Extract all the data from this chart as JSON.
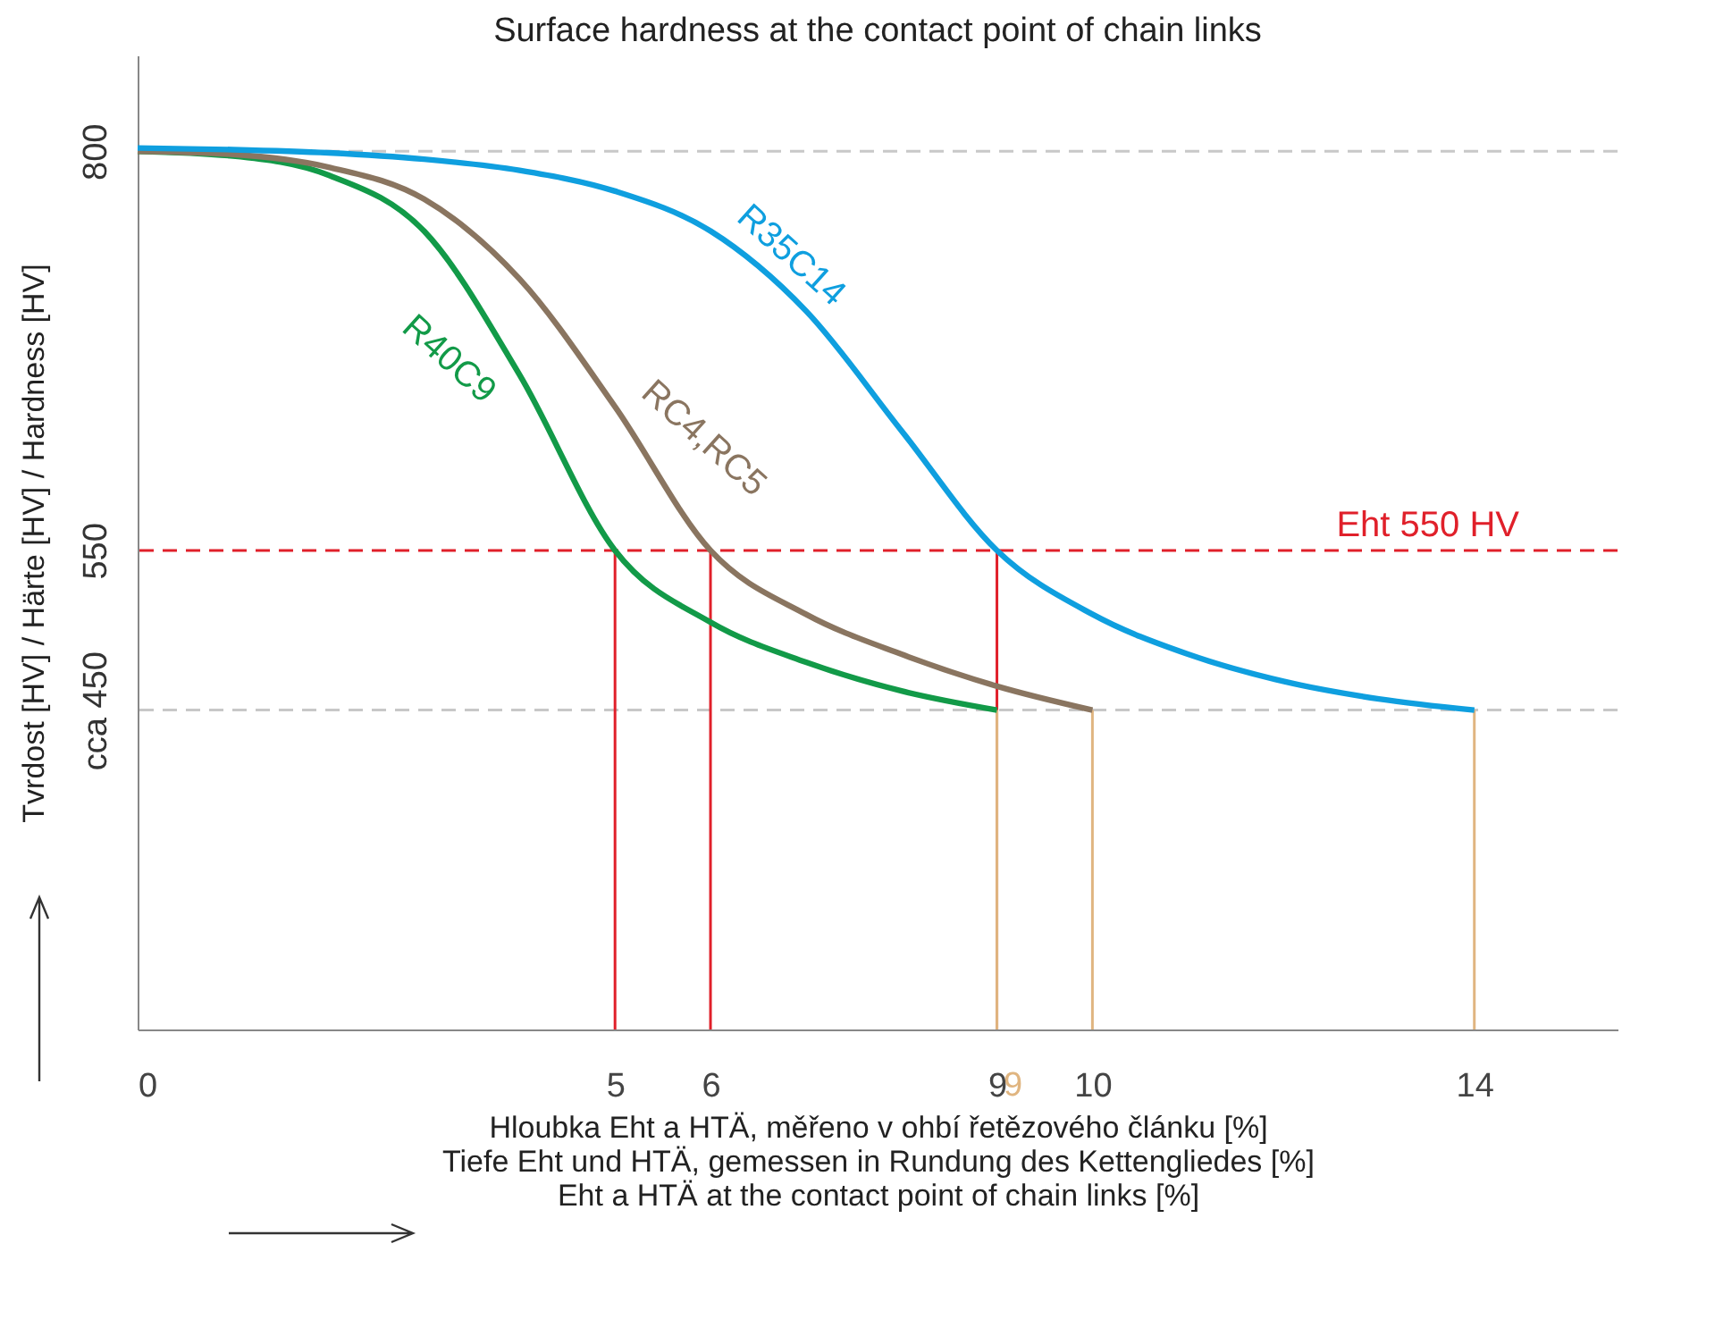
{
  "chart_data": {
    "type": "line",
    "title": "Surface hardness at the contact point of chain links",
    "xlabel": "Hloubka Eht a HTÄ, měřeno v ohbí řetězového článku [%]\nTiefe Eht und HTÄ, gemessen in Rundung des Kettengliedes [%]\nEht a HTÄ at the contact point of chain links [%]",
    "ylabel": "Tvrdost [HV] / Härte [HV] / Hardness [HV]",
    "xlim": [
      0,
      15.5
    ],
    "xticks": [
      0,
      5,
      6,
      9,
      10,
      14
    ],
    "ylim": [
      250,
      860
    ],
    "yticks": [
      {
        "value": 450,
        "label": "cca 450"
      },
      550,
      800
    ],
    "legend": false,
    "grid": false,
    "marker": "none",
    "line_style": "solid",
    "series": [
      {
        "name": "R40C9",
        "color": "#129a48",
        "x": [
          0,
          1,
          2,
          3,
          4,
          5,
          6,
          7,
          8,
          9
        ],
        "values": [
          800,
          797,
          785,
          750,
          660,
          550,
          505,
          480,
          462,
          450
        ]
      },
      {
        "name": "RC4,RC5",
        "color": "#8a7560",
        "x": [
          0,
          1,
          2,
          3,
          4,
          5,
          6,
          7,
          8,
          9,
          10
        ],
        "values": [
          800,
          798,
          790,
          770,
          720,
          640,
          550,
          510,
          485,
          465,
          450
        ]
      },
      {
        "name": "R35C14",
        "color": "#0f9fdf",
        "x": [
          0,
          1,
          2,
          3,
          4,
          5,
          6,
          7,
          8,
          9,
          10,
          11,
          12,
          13,
          14
        ],
        "values": [
          802,
          801,
          799,
          795,
          788,
          775,
          750,
          700,
          625,
          550,
          510,
          485,
          468,
          457,
          450
        ]
      }
    ],
    "ref_lines": [
      {
        "axis": "y",
        "value": 800,
        "color": "#c8c8c8",
        "line_style": "dashed"
      },
      {
        "axis": "y",
        "value": 550,
        "label": "Eht 550 HV",
        "color": "#e0202a",
        "line_style": "dashed"
      },
      {
        "axis": "y",
        "value": 450,
        "color": "#c8c8c8",
        "line_style": "dashed"
      },
      {
        "axis": "x",
        "value": 5,
        "color": "#e0202a"
      },
      {
        "axis": "x",
        "value": 6,
        "color": "#e0202a"
      },
      {
        "axis": "x",
        "value": 9,
        "color": "#e0202a"
      },
      {
        "axis": "x",
        "value": 9,
        "label": "9",
        "color": "#e0b580"
      },
      {
        "axis": "x",
        "value": 10,
        "color": "#e0b580"
      },
      {
        "axis": "x",
        "value": 14,
        "color": "#e0b580"
      }
    ]
  }
}
